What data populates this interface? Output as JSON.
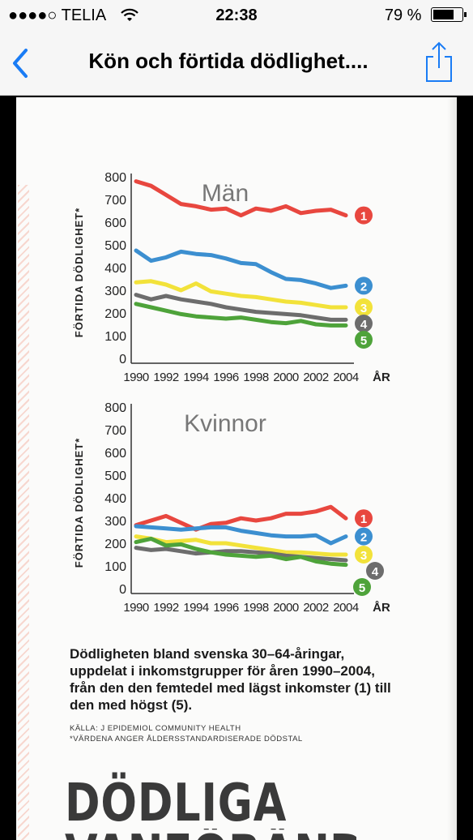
{
  "status_bar": {
    "carrier": "●●●●○ TELIA",
    "time": "22:38",
    "battery": "79 %",
    "battery_level": 0.79,
    "wifi_icon": "wifi-icon"
  },
  "nav": {
    "title": "Kön och förtida dödlighet....",
    "back_icon": "chevron-left-icon",
    "share_icon": "share-icon",
    "accent": "#1a7cf5"
  },
  "article": {
    "caption": "Dödligheten bland svenska 30–64-åringar, uppdelat i inkomstgrupper för åren 1990–2004, från den den femtedel med lägst inkomster (1) till den med högst (5).",
    "source": "KÄLLA: J EPIDEMIOL COMMUNITY HEALTH",
    "note": "*VÄRDENA ANGER ÅLDERSSTANDARDISERADE DÖDSTAL",
    "headline": "DÖDLIGA",
    "headline2": "VANFÖRÄNDRINGAR"
  },
  "chart_data": [
    {
      "type": "line",
      "title": "Män",
      "ylabel": "FÖRTIDA DÖDLIGHET*",
      "xlabel": "ÅR",
      "x": [
        1990,
        1991,
        1992,
        1993,
        1994,
        1995,
        1996,
        1997,
        1998,
        1999,
        2000,
        2001,
        2002,
        2003,
        2004
      ],
      "xticks": [
        1990,
        1992,
        1994,
        1996,
        1998,
        2000,
        2002,
        2004
      ],
      "yticks": [
        0,
        100,
        200,
        300,
        400,
        500,
        600,
        700,
        800
      ],
      "ylim": [
        0,
        800
      ],
      "grid": false,
      "series": [
        {
          "name": "1",
          "color": "#e8473f",
          "values": [
            780,
            760,
            720,
            680,
            670,
            655,
            660,
            630,
            660,
            650,
            670,
            640,
            650,
            655,
            630
          ]
        },
        {
          "name": "2",
          "color": "#3c8fd0",
          "values": [
            475,
            430,
            445,
            470,
            460,
            455,
            440,
            420,
            415,
            380,
            350,
            345,
            330,
            310,
            320
          ]
        },
        {
          "name": "3",
          "color": "#f2e23a",
          "values": [
            335,
            340,
            325,
            300,
            330,
            295,
            285,
            275,
            270,
            260,
            250,
            245,
            235,
            225,
            225
          ]
        },
        {
          "name": "4",
          "color": "#6d6d6d",
          "values": [
            280,
            260,
            275,
            260,
            250,
            240,
            225,
            215,
            205,
            200,
            195,
            190,
            180,
            170,
            170
          ]
        },
        {
          "name": "5",
          "color": "#4ea33a",
          "values": [
            240,
            225,
            210,
            195,
            185,
            180,
            175,
            180,
            170,
            160,
            155,
            165,
            150,
            145,
            145
          ]
        }
      ]
    },
    {
      "type": "line",
      "title": "Kvinnor",
      "ylabel": "FÖRTIDA DÖDLIGHET*",
      "xlabel": "ÅR",
      "x": [
        1990,
        1991,
        1992,
        1993,
        1994,
        1995,
        1996,
        1997,
        1998,
        1999,
        2000,
        2001,
        2002,
        2003,
        2004
      ],
      "xticks": [
        1990,
        1992,
        1994,
        1996,
        1998,
        2000,
        2002,
        2004
      ],
      "yticks": [
        0,
        100,
        200,
        300,
        400,
        500,
        600,
        700,
        800
      ],
      "ylim": [
        0,
        800
      ],
      "grid": false,
      "series": [
        {
          "name": "1",
          "color": "#e8473f",
          "values": [
            280,
            300,
            320,
            290,
            260,
            285,
            290,
            310,
            300,
            310,
            330,
            330,
            340,
            360,
            310
          ]
        },
        {
          "name": "2",
          "color": "#3c8fd0",
          "values": [
            275,
            270,
            265,
            260,
            265,
            270,
            270,
            255,
            245,
            235,
            230,
            230,
            235,
            200,
            230
          ]
        },
        {
          "name": "3",
          "color": "#f2e23a",
          "values": [
            230,
            220,
            205,
            210,
            215,
            200,
            200,
            190,
            180,
            170,
            160,
            160,
            155,
            150,
            150
          ]
        },
        {
          "name": "4",
          "color": "#6d6d6d",
          "values": [
            180,
            170,
            175,
            165,
            155,
            160,
            165,
            165,
            160,
            155,
            145,
            140,
            135,
            130,
            125
          ]
        },
        {
          "name": "5",
          "color": "#4ea33a",
          "values": [
            205,
            220,
            190,
            195,
            175,
            160,
            150,
            145,
            140,
            145,
            130,
            140,
            120,
            110,
            105
          ]
        }
      ]
    }
  ]
}
